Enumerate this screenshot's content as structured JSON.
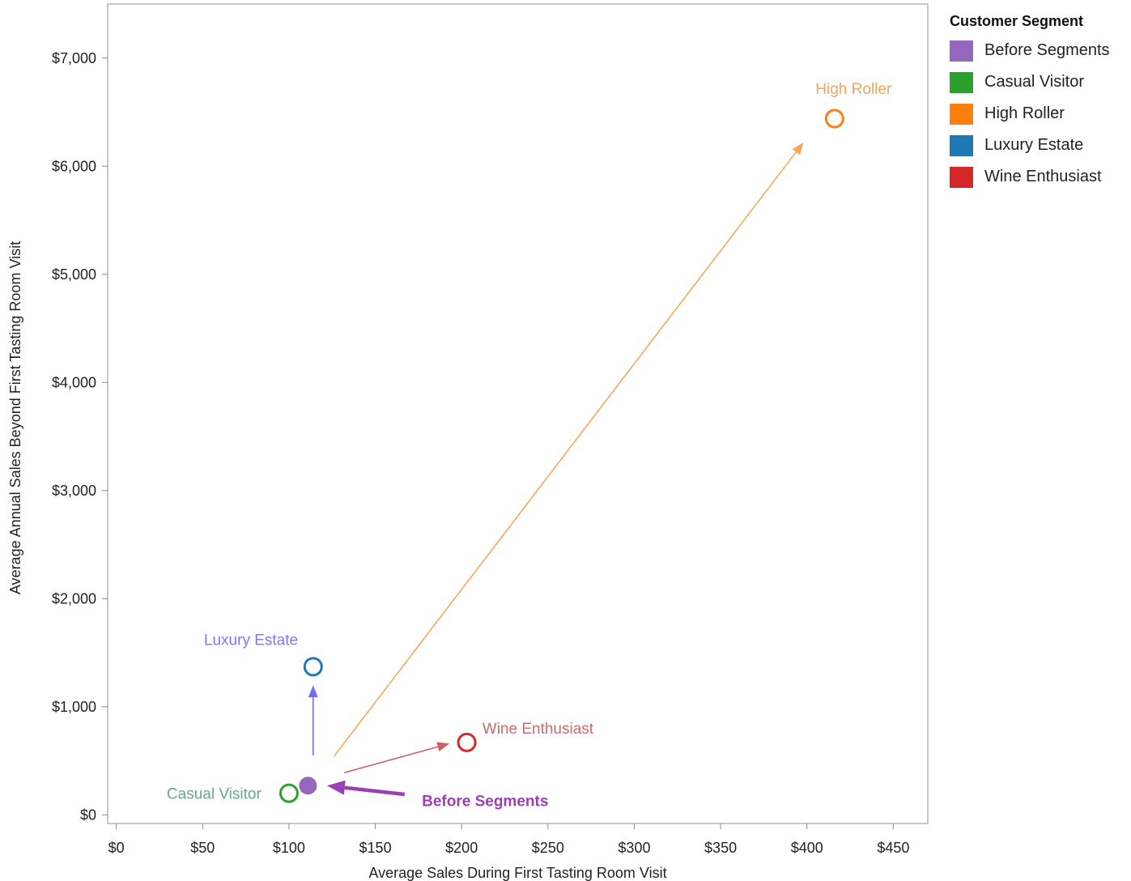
{
  "chart_data": {
    "type": "scatter",
    "title": "",
    "xlabel": "Average Sales During First Tasting Room Visit",
    "ylabel": "Average Annual Sales Beyond First Tasting Room Visit",
    "xlim": [
      -5,
      470
    ],
    "ylim": [
      -80,
      7500
    ],
    "x_ticks": [
      0,
      50,
      100,
      150,
      200,
      250,
      300,
      350,
      400,
      450
    ],
    "x_tick_labels": [
      "$0",
      "$50",
      "$100",
      "$150",
      "$200",
      "$250",
      "$300",
      "$350",
      "$400",
      "$450"
    ],
    "y_ticks": [
      0,
      1000,
      2000,
      3000,
      4000,
      5000,
      6000,
      7000
    ],
    "y_tick_labels": [
      "$0",
      "$1,000",
      "$2,000",
      "$3,000",
      "$4,000",
      "$5,000",
      "$6,000",
      "$7,000"
    ],
    "grid": false,
    "legend_position": "right",
    "legend_title": "Customer Segment",
    "series": [
      {
        "name": "Before Segments",
        "x": 111,
        "y": 270,
        "color": "#9467bd",
        "marker": "filled-circle"
      },
      {
        "name": "Casual Visitor",
        "x": 100,
        "y": 200,
        "color": "#2ca02c",
        "marker": "open-circle"
      },
      {
        "name": "High Roller",
        "x": 416,
        "y": 6440,
        "color": "#ff7f0e",
        "marker": "open-circle"
      },
      {
        "name": "Luxury Estate",
        "x": 114,
        "y": 1370,
        "color": "#1f77b4",
        "marker": "open-circle"
      },
      {
        "name": "Wine Enthusiast",
        "x": 203,
        "y": 670,
        "color": "#d62728",
        "marker": "open-circle"
      }
    ],
    "annotations": [
      {
        "text": "High Roller",
        "x": 427,
        "y": 6670,
        "color": "#f5a65b",
        "anchor": "middle",
        "bold": false
      },
      {
        "text": "Luxury Estate",
        "x": 78,
        "y": 1570,
        "color": "#7b7bf5",
        "anchor": "middle",
        "bold": false
      },
      {
        "text": "Wine Enthusiast",
        "x": 212,
        "y": 750,
        "color": "#d0686d",
        "anchor": "start",
        "bold": false
      },
      {
        "text": "Casual Visitor",
        "x": 84,
        "y": 150,
        "color": "#6aa58d",
        "anchor": "end",
        "bold": false
      },
      {
        "text": "Before Segments",
        "x": 177,
        "y": 80,
        "color": "#9b3fb5",
        "anchor": "start",
        "bold": true
      }
    ],
    "arrows": [
      {
        "from": [
          126,
          540
        ],
        "to": [
          398,
          6220
        ],
        "color": "#f7a85a",
        "width": 1.6
      },
      {
        "from": [
          114,
          550
        ],
        "to": [
          114,
          1200
        ],
        "color": "#7070f0",
        "width": 1.6
      },
      {
        "from": [
          132,
          390
        ],
        "to": [
          193,
          660
        ],
        "color": "#cf5f66",
        "width": 1.6
      },
      {
        "from": [
          167,
          190
        ],
        "to": [
          122,
          270
        ],
        "color": "#9b3fb5",
        "width": 4.5
      }
    ]
  }
}
